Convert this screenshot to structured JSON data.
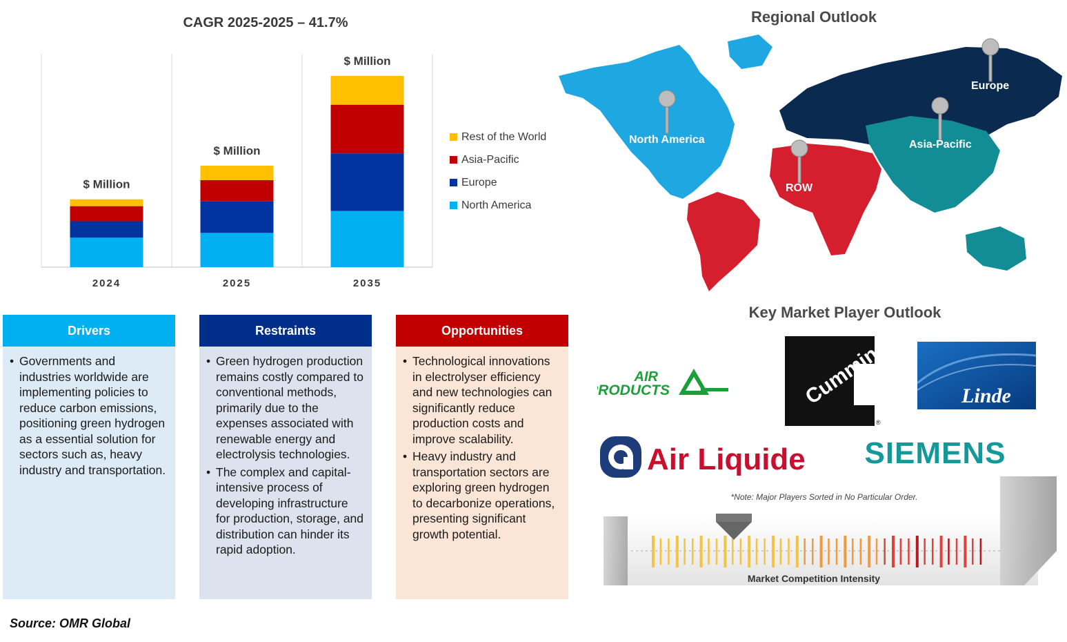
{
  "chart_data": {
    "type": "bar",
    "stacked": true,
    "title": "CAGR 2025-2025 – 41.7%",
    "categories": [
      "2024",
      "2025",
      "2035"
    ],
    "series": [
      {
        "name": "North America",
        "color": "#00B0F0",
        "values": [
          43,
          50,
          82
        ]
      },
      {
        "name": "Europe",
        "color": "#0033A0",
        "values": [
          24,
          46,
          84
        ]
      },
      {
        "name": "Asia-Pacific",
        "color": "#C00000",
        "values": [
          22,
          31,
          71
        ]
      },
      {
        "name": "Rest of the World",
        "color": "#FFC000",
        "values": [
          10,
          21,
          42
        ]
      }
    ],
    "data_labels": [
      "$ Million",
      "$ Million",
      "$ Million"
    ],
    "legend_position": "right",
    "grid": false
  },
  "boxes": [
    {
      "title": "Drivers",
      "header_color": "#00B0F0",
      "body_color": "#DDEBF7",
      "items": [
        "Governments and industries worldwide are implementing policies to reduce carbon emissions, positioning green hydrogen as a essential solution for sectors such as, heavy industry and transportation."
      ]
    },
    {
      "title": "Restraints",
      "header_color": "#002E8A",
      "body_color": "#DCE3EE",
      "items": [
        "Green hydrogen production remains costly compared to conventional methods, primarily due to the expenses associated with renewable energy and electrolysis technologies.",
        "The complex and capital-intensive process of developing infrastructure for production, storage, and distribution can hinder its rapid adoption."
      ]
    },
    {
      "title": "Opportunities",
      "header_color": "#C00000",
      "body_color": "#FBE5D6",
      "items": [
        "Technological innovations in electrolyser efficiency and new technologies can significantly reduce production costs and improve scalability.",
        "Heavy industry and transportation sectors are exploring green hydrogen to decarbonize operations, presenting significant growth potential."
      ]
    }
  ],
  "source": "Source: OMR Global",
  "regional_outlook": {
    "title": "Regional Outlook",
    "regions": [
      {
        "label": "North America",
        "color": "#1EA7E1"
      },
      {
        "label": "Europe",
        "color": "#0B2A4F"
      },
      {
        "label": "Asia-Pacific",
        "color": "#138D95"
      },
      {
        "label": "ROW",
        "color": "#D51E2E"
      }
    ]
  },
  "key_players": {
    "title": "Key Market Player Outlook",
    "logos": [
      {
        "name": "AIR PRODUCTS",
        "line1": "AIR",
        "line2": "PRODUCTS",
        "color": "#1E9E3A"
      },
      {
        "name": "Cummins",
        "color": "#111111"
      },
      {
        "name": "Linde",
        "color": "#0A4D9E"
      },
      {
        "name": "Air Liquide",
        "color": "#C8102E",
        "accent": "#1F3C7A"
      },
      {
        "name": "SIEMENS",
        "color": "#14999A"
      }
    ],
    "note": "*Note: Major Players Sorted in No Particular Order.",
    "intensity_label": "Market Competition Intensity"
  }
}
